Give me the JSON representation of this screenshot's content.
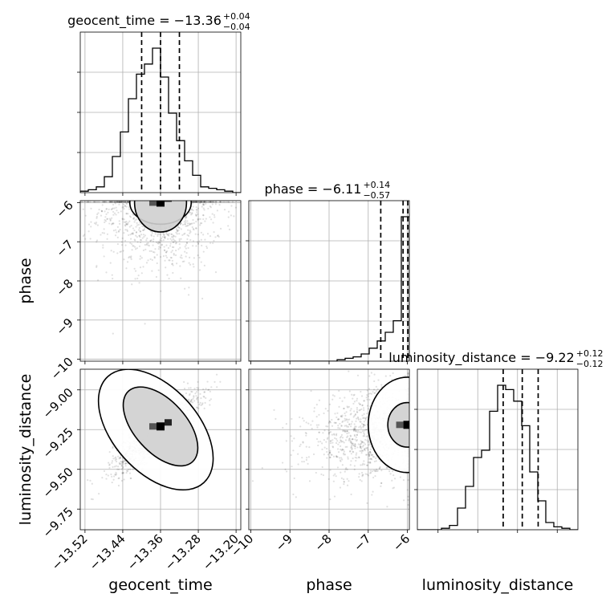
{
  "chart_data": {
    "type": "corner",
    "parameters": [
      {
        "name": "geocent_time",
        "xlabel": "geocent_time",
        "title_main": "geocent_time = −13.36",
        "title_sup": "+0.04",
        "title_sub": "−0.04",
        "range": [
          -13.53,
          -13.19
        ],
        "ticks": [
          -13.52,
          -13.44,
          -13.36,
          -13.28,
          -13.2
        ],
        "tick_labels": [
          "−13.52",
          "−13.44",
          "−13.36",
          "−13.28",
          "−13.20"
        ],
        "quantiles": [
          -13.4,
          -13.36,
          -13.32
        ],
        "hist_edges": [
          -13.53,
          -13.513,
          -13.496,
          -13.479,
          -13.462,
          -13.445,
          -13.428,
          -13.411,
          -13.394,
          -13.377,
          -13.36,
          -13.343,
          -13.326,
          -13.309,
          -13.292,
          -13.275,
          -13.258,
          -13.241,
          -13.224,
          -13.207,
          -13.19
        ],
        "hist_values": [
          0.01,
          0.02,
          0.04,
          0.11,
          0.25,
          0.42,
          0.65,
          0.82,
          0.89,
          1.0,
          0.8,
          0.55,
          0.36,
          0.22,
          0.12,
          0.04,
          0.03,
          0.02,
          0.01,
          0.0
        ]
      },
      {
        "name": "phase",
        "xlabel": "phase",
        "ylabel": "phase",
        "title_main": "phase = −6.11",
        "title_sup": "+0.14",
        "title_sub": "−0.57",
        "range": [
          -10.05,
          -5.95
        ],
        "ticks": [
          -10,
          -9,
          -8,
          -7,
          -6
        ],
        "tick_labels": [
          "−10",
          "−9",
          "−8",
          "−7",
          "−6"
        ],
        "quantiles": [
          -6.68,
          -6.11,
          -5.99
        ],
        "hist_edges": [
          -10.05,
          -9.845,
          -9.64,
          -9.435,
          -9.23,
          -9.025,
          -8.82,
          -8.615,
          -8.41,
          -8.205,
          -8.0,
          -7.795,
          -7.59,
          -7.385,
          -7.18,
          -6.975,
          -6.77,
          -6.565,
          -6.36,
          -6.155,
          -5.95
        ],
        "hist_values": [
          0.0,
          0.0,
          0.0,
          0.0,
          0.0,
          0.0,
          0.0,
          0.0,
          0.0,
          0.0,
          0.0,
          0.01,
          0.02,
          0.03,
          0.05,
          0.09,
          0.14,
          0.2,
          0.28,
          1.0
        ]
      },
      {
        "name": "luminosity_distance",
        "xlabel": "luminosity_distance",
        "ylabel": "luminosity_distance",
        "title_main": "luminosity_distance = −9.22",
        "title_sup": "+0.12",
        "title_sub": "−0.12",
        "range": [
          -9.88,
          -8.87
        ],
        "ticks": [
          -9.75,
          -9.5,
          -9.25,
          -9.0
        ],
        "tick_labels": [
          "−9.75",
          "−9.50",
          "−9.25",
          "−9.00"
        ],
        "quantiles": [
          -9.34,
          -9.22,
          -9.12
        ],
        "hist_edges": [
          -9.88,
          -9.8295,
          -9.779,
          -9.7285,
          -9.678,
          -9.6275,
          -9.577,
          -9.5265,
          -9.476,
          -9.4255,
          -9.375,
          -9.3245,
          -9.274,
          -9.2235,
          -9.173,
          -9.1225,
          -9.072,
          -9.0215,
          -8.971,
          -8.9205,
          -8.87
        ],
        "hist_values": [
          0.0,
          0.0,
          0.0,
          0.01,
          0.03,
          0.15,
          0.3,
          0.5,
          0.55,
          0.82,
          1.0,
          0.97,
          0.89,
          0.72,
          0.4,
          0.2,
          0.05,
          0.02,
          0.01,
          0.0
        ]
      }
    ],
    "pairs": [
      {
        "x": "geocent_time",
        "y": "phase",
        "mean": [
          -13.36,
          -6.2
        ],
        "sd": [
          0.065,
          0.75
        ],
        "corr": 0.0,
        "n_points": 1300,
        "contours": [
          {
            "center": [
              -13.36,
              -6.0
            ],
            "radius": [
              0.055,
              0.75
            ],
            "level": 0.39
          },
          {
            "center": [
              -13.36,
              -6.0
            ],
            "radius": [
              0.065,
              0.55
            ],
            "level": 0.86
          }
        ]
      },
      {
        "x": "geocent_time",
        "y": "luminosity_distance",
        "mean": [
          -13.37,
          -9.27
        ],
        "sd": [
          0.045,
          0.12
        ],
        "corr": 0.85,
        "n_points": 1300,
        "contours": [
          {
            "center": [
              -13.36,
              -9.23
            ],
            "radius": [
              0.055,
              0.3
            ],
            "level": 0.39
          },
          {
            "center": [
              -13.37,
              -9.25
            ],
            "radius": [
              0.09,
              0.45
            ],
            "level": 0.86
          }
        ]
      },
      {
        "x": "phase",
        "y": "luminosity_distance",
        "mean": [
          -6.7,
          -9.27
        ],
        "sd": [
          0.9,
          0.14
        ],
        "corr": 0.2,
        "n_points": 1300,
        "contours": [
          {
            "center": [
              -6.0,
              -9.22
            ],
            "radius": [
              0.5,
              0.14
            ],
            "level": 0.39
          },
          {
            "center": [
              -6.0,
              -9.22
            ],
            "radius": [
              1.0,
              0.3
            ],
            "level": 0.86
          }
        ]
      }
    ],
    "grid": true
  }
}
